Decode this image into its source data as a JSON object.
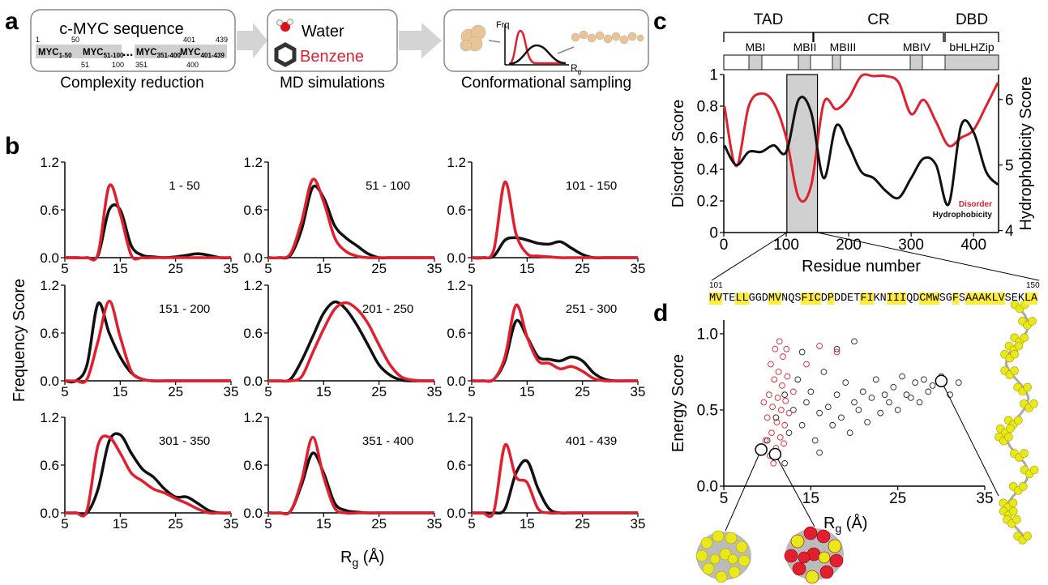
{
  "panel_labels": [
    "a",
    "b",
    "c",
    "d"
  ],
  "schematic": {
    "sequence_title": "c-MYC sequence",
    "segments": [
      {
        "main": "MYC",
        "sub": "1-50"
      },
      {
        "main": "MYC",
        "sub": "51-100"
      },
      {
        "main": "MYC",
        "sub": "351-400"
      },
      {
        "main": "MYC",
        "sub": "401-439"
      }
    ],
    "ellipsis": "...",
    "residue_marks": [
      "1",
      "50",
      "51",
      "100",
      "351",
      "400",
      "401",
      "439"
    ],
    "solvents": [
      "Water",
      "Benzene"
    ],
    "plot_labels": {
      "y": "Frq",
      "x_main": "R",
      "x_sub": "g"
    },
    "captions": [
      "Complexity reduction",
      "MD simulations",
      "Conformational sampling"
    ]
  },
  "shared_labels": {
    "frequency": "Frequency Score",
    "rg_main": "R",
    "rg_sub": "g",
    "rg_unit": " (Å)"
  },
  "chart_data": [
    {
      "type": "line",
      "title": "1 - 50",
      "x": [
        5,
        7,
        9,
        11,
        13,
        15,
        17,
        19,
        21,
        23,
        25,
        27,
        29,
        31,
        33,
        35
      ],
      "xlim": [
        5,
        35
      ],
      "xticks": [
        5,
        15,
        25,
        35
      ],
      "ylim": [
        0,
        1.2
      ],
      "yticks": [
        {
          "value": 0,
          "label": "0.0"
        },
        0.6,
        1.2
      ],
      "series": [
        {
          "color": "#111111",
          "values": [
            0,
            0,
            0,
            0.03,
            0.6,
            0.6,
            0.15,
            0.03,
            0.01,
            0,
            0.01,
            0.03,
            0.05,
            0.03,
            0,
            0
          ]
        },
        {
          "color": "#e0202f",
          "values": [
            0,
            0,
            0,
            0.05,
            0.9,
            0.55,
            0.03,
            0,
            0,
            0,
            0,
            0,
            0,
            0,
            0,
            0
          ]
        }
      ]
    },
    {
      "type": "line",
      "title": "51 - 100",
      "x": [
        5,
        7,
        9,
        11,
        13,
        15,
        17,
        19,
        21,
        23,
        25,
        27,
        29,
        31,
        33,
        35
      ],
      "xlim": [
        5,
        35
      ],
      "xticks": [
        5,
        15,
        25,
        35
      ],
      "ylim": [
        0,
        1.2
      ],
      "yticks": [
        {
          "value": 0,
          "label": "0.0"
        },
        0.6,
        1.2
      ],
      "series": [
        {
          "color": "#111111",
          "values": [
            0,
            0,
            0.03,
            0.35,
            0.88,
            0.75,
            0.4,
            0.25,
            0.15,
            0.05,
            0,
            0,
            0,
            0,
            0,
            0
          ]
        },
        {
          "color": "#e0202f",
          "values": [
            0,
            0,
            0.05,
            0.45,
            0.98,
            0.7,
            0.25,
            0.08,
            0.02,
            0,
            0,
            0,
            0,
            0,
            0,
            0
          ]
        }
      ]
    },
    {
      "type": "line",
      "title": "101 - 150",
      "x": [
        5,
        7,
        9,
        11,
        13,
        15,
        17,
        19,
        21,
        23,
        25,
        27,
        29,
        31,
        33,
        35
      ],
      "xlim": [
        5,
        35
      ],
      "xticks": [
        5,
        15,
        25,
        35
      ],
      "ylim": [
        0,
        1.2
      ],
      "yticks": [
        {
          "value": 0,
          "label": "0.0"
        },
        0.6,
        1.2
      ],
      "series": [
        {
          "color": "#111111",
          "values": [
            0,
            0,
            0.02,
            0.22,
            0.25,
            0.22,
            0.18,
            0.17,
            0.2,
            0.12,
            0.04,
            0,
            0,
            0,
            0,
            0
          ]
        },
        {
          "color": "#e0202f",
          "values": [
            0,
            0,
            0.1,
            0.95,
            0.3,
            0.05,
            0.02,
            0.01,
            0,
            0,
            0,
            0,
            0,
            0,
            0,
            0
          ]
        }
      ]
    },
    {
      "type": "line",
      "title": "151 - 200",
      "x": [
        5,
        7,
        9,
        11,
        13,
        15,
        17,
        19,
        21,
        23,
        25,
        27,
        29,
        31,
        33,
        35
      ],
      "xlim": [
        5,
        35
      ],
      "xticks": [
        5,
        15,
        25,
        35
      ],
      "ylim": [
        0,
        1.2
      ],
      "yticks": [
        {
          "value": 0,
          "label": "0.0"
        },
        0.6,
        1.2
      ],
      "series": [
        {
          "color": "#111111",
          "values": [
            0,
            0,
            0.2,
            0.97,
            0.6,
            0.3,
            0.1,
            0.02,
            0,
            0,
            0,
            0,
            0,
            0,
            0,
            0
          ]
        },
        {
          "color": "#e0202f",
          "values": [
            0,
            0,
            0.02,
            0.5,
            1.0,
            0.55,
            0.12,
            0.02,
            0,
            0,
            0,
            0,
            0,
            0,
            0,
            0
          ]
        }
      ]
    },
    {
      "type": "line",
      "title": "201 - 250",
      "x": [
        5,
        7,
        9,
        11,
        13,
        15,
        17,
        19,
        21,
        23,
        25,
        27,
        29,
        31,
        33,
        35
      ],
      "xlim": [
        5,
        35
      ],
      "xticks": [
        5,
        15,
        25,
        35
      ],
      "ylim": [
        0,
        1.2
      ],
      "yticks": [
        {
          "value": 0,
          "label": "0.0"
        },
        0.6,
        1.2
      ],
      "series": [
        {
          "color": "#111111",
          "values": [
            0,
            0,
            0.02,
            0.25,
            0.55,
            0.85,
            0.99,
            0.9,
            0.7,
            0.45,
            0.2,
            0.07,
            0.01,
            0,
            0,
            0
          ]
        },
        {
          "color": "#e0202f",
          "values": [
            0,
            0,
            0,
            0.05,
            0.35,
            0.65,
            0.9,
            0.98,
            0.9,
            0.72,
            0.45,
            0.2,
            0.05,
            0.01,
            0,
            0
          ]
        }
      ]
    },
    {
      "type": "line",
      "title": "251 - 300",
      "x": [
        5,
        7,
        9,
        11,
        13,
        15,
        17,
        19,
        21,
        23,
        25,
        27,
        29,
        31,
        33,
        35
      ],
      "xlim": [
        5,
        35
      ],
      "xticks": [
        5,
        15,
        25,
        35
      ],
      "ylim": [
        0,
        1.2
      ],
      "yticks": [
        {
          "value": 0,
          "label": "0.0"
        },
        0.6,
        1.2
      ],
      "series": [
        {
          "color": "#111111",
          "values": [
            0,
            0,
            0.02,
            0.25,
            0.75,
            0.55,
            0.3,
            0.27,
            0.25,
            0.3,
            0.25,
            0.1,
            0.02,
            0,
            0,
            0
          ]
        },
        {
          "color": "#e0202f",
          "values": [
            0,
            0,
            0.02,
            0.3,
            0.95,
            0.55,
            0.25,
            0.22,
            0.15,
            0.18,
            0.12,
            0.03,
            0,
            0,
            0,
            0
          ]
        }
      ]
    },
    {
      "type": "line",
      "title": "301 - 350",
      "x": [
        5,
        7,
        9,
        11,
        13,
        15,
        17,
        19,
        21,
        23,
        25,
        27,
        29,
        31,
        33,
        35
      ],
      "xlim": [
        5,
        35
      ],
      "xticks": [
        5,
        15,
        25,
        35
      ],
      "ylim": [
        0,
        1.2
      ],
      "yticks": [
        {
          "value": 0,
          "label": "0.0"
        },
        0.6,
        1.2
      ],
      "series": [
        {
          "color": "#111111",
          "values": [
            0,
            0,
            0,
            0.3,
            0.9,
            0.98,
            0.75,
            0.55,
            0.45,
            0.3,
            0.2,
            0.2,
            0.12,
            0.03,
            0,
            0
          ]
        },
        {
          "color": "#e0202f",
          "values": [
            0,
            0,
            0.03,
            0.85,
            0.95,
            0.75,
            0.5,
            0.4,
            0.3,
            0.25,
            0.18,
            0.12,
            0.05,
            0,
            0,
            0
          ]
        }
      ]
    },
    {
      "type": "line",
      "title": "351 - 400",
      "x": [
        5,
        7,
        9,
        11,
        13,
        15,
        17,
        19,
        21,
        23,
        25,
        27,
        29,
        31,
        33,
        35
      ],
      "xlim": [
        5,
        35
      ],
      "xticks": [
        5,
        15,
        25,
        35
      ],
      "ylim": [
        0,
        1.2
      ],
      "yticks": [
        {
          "value": 0,
          "label": "0.0"
        },
        0.6,
        1.2
      ],
      "series": [
        {
          "color": "#111111",
          "values": [
            0,
            0,
            0.02,
            0.35,
            0.75,
            0.5,
            0.12,
            0.03,
            0.01,
            0,
            0,
            0,
            0,
            0,
            0,
            0
          ]
        },
        {
          "color": "#e0202f",
          "values": [
            0,
            0,
            0.02,
            0.4,
            0.95,
            0.45,
            0.06,
            0,
            0,
            0,
            0,
            0,
            0,
            0,
            0,
            0
          ]
        }
      ]
    },
    {
      "type": "line",
      "title": "401 - 439",
      "x": [
        5,
        7,
        9,
        11,
        13,
        15,
        17,
        19,
        21,
        23,
        25,
        27,
        29,
        31,
        33,
        35
      ],
      "xlim": [
        5,
        35
      ],
      "xticks": [
        5,
        15,
        25,
        35
      ],
      "ylim": [
        0,
        1.2
      ],
      "yticks": [
        {
          "value": 0,
          "label": "0.0"
        },
        0.6,
        1.2
      ],
      "series": [
        {
          "color": "#111111",
          "values": [
            0,
            0,
            0,
            0.05,
            0.5,
            0.65,
            0.3,
            0.05,
            0,
            0,
            0,
            0,
            0,
            0,
            0,
            0
          ]
        },
        {
          "color": "#e0202f",
          "values": [
            0,
            0,
            0.02,
            0.85,
            0.45,
            0.38,
            0.05,
            0,
            0,
            0,
            0,
            0,
            0,
            0,
            0,
            0
          ]
        }
      ]
    },
    {
      "type": "line",
      "x": [
        1,
        20,
        40,
        60,
        80,
        100,
        120,
        140,
        160,
        180,
        200,
        220,
        240,
        260,
        280,
        300,
        320,
        340,
        360,
        380,
        400,
        420,
        439
      ],
      "xlim": [
        0,
        440
      ],
      "xticks": [
        0,
        100,
        200,
        300,
        400
      ],
      "ylim": [
        0,
        1
      ],
      "yticks": [
        0,
        0.2,
        0.4,
        0.6,
        0.8,
        1
      ],
      "y2lim": [
        3.97,
        6.38
      ],
      "y2ticks": [
        4,
        5,
        6
      ],
      "x_label": "Residue number",
      "y_label": "Disorder Score",
      "y2_label": "Hydrophobicity Score",
      "legend": "lower right",
      "highlight_range": [
        101,
        150
      ],
      "domains": [
        "TAD",
        "CR",
        "DBD"
      ],
      "motifs": [
        "MBI",
        "MBII",
        "MBIII",
        "MBIV",
        "bHLHZip"
      ],
      "series": [
        {
          "name": "Disorder",
          "color": "#e0202f",
          "values": [
            0.8,
            0.42,
            0.8,
            0.88,
            0.82,
            0.6,
            0.22,
            0.3,
            0.82,
            0.78,
            0.85,
            0.99,
            0.99,
            0.99,
            0.95,
            0.75,
            0.84,
            0.7,
            0.55,
            0.6,
            0.65,
            0.8,
            0.95
          ]
        },
        {
          "name": "Hydrophobicity",
          "color": "#111111",
          "axis": "y2",
          "values": [
            5.3,
            5.0,
            5.2,
            5.2,
            5.3,
            5.2,
            6.0,
            5.8,
            4.8,
            5.6,
            5.3,
            4.9,
            4.8,
            4.6,
            4.5,
            4.8,
            5.1,
            5.0,
            4.4,
            5.6,
            5.5,
            4.9,
            4.7
          ]
        }
      ]
    },
    {
      "type": "scatter",
      "xlim": [
        5,
        35
      ],
      "xticks": [
        5,
        15,
        25,
        35
      ],
      "ylim": [
        0,
        1.09
      ],
      "yticks": [
        {
          "value": 0,
          "label": "0.0"
        },
        {
          "value": 0.5,
          "label": "0.5"
        },
        {
          "value": 1,
          "label": "1.0"
        }
      ],
      "y_label": "Energy Score",
      "x_label": {
        "main": "R",
        "sub": "g",
        "rest": " (Å)"
      },
      "series": [
        {
          "color": "#222222",
          "x": [
            10,
            11,
            12,
            12.5,
            13,
            13.5,
            14,
            14.5,
            15,
            15.5,
            16,
            16.5,
            17,
            17.5,
            18,
            18.5,
            19,
            19.5,
            20,
            20.5,
            21,
            21.5,
            22,
            22.5,
            23,
            23.5,
            24,
            24.5,
            25,
            25.5,
            26,
            26.5,
            27,
            27.5,
            28,
            28.5,
            29,
            30,
            31,
            32,
            14,
            18,
            20,
            12,
            16
          ],
          "values": [
            0.3,
            0.45,
            0.6,
            0.35,
            0.5,
            0.7,
            0.4,
            0.55,
            0.62,
            0.3,
            0.48,
            0.75,
            0.52,
            0.4,
            0.6,
            0.45,
            0.68,
            0.35,
            0.55,
            0.5,
            0.62,
            0.42,
            0.58,
            0.7,
            0.48,
            0.6,
            0.55,
            0.65,
            0.5,
            0.72,
            0.6,
            0.58,
            0.68,
            0.55,
            0.7,
            0.62,
            0.66,
            0.72,
            0.6,
            0.68,
            0.88,
            0.9,
            0.95,
            0.15,
            0.22
          ]
        },
        {
          "color": "#e0202f",
          "x": [
            9.8,
            10,
            10.2,
            10.4,
            10.5,
            10.6,
            10.8,
            10.9,
            11,
            11.1,
            11.2,
            11.3,
            11.4,
            11.5,
            11.6,
            11.7,
            11.8,
            12,
            12.1,
            12.3,
            12.5,
            10.3,
            11.9,
            13,
            14.5,
            16,
            18,
            9.6,
            10.7,
            12.2
          ],
          "values": [
            0.3,
            0.45,
            0.6,
            0.8,
            0.35,
            0.52,
            0.7,
            0.9,
            0.25,
            0.42,
            0.58,
            0.75,
            0.95,
            0.32,
            0.5,
            0.66,
            0.85,
            0.4,
            0.56,
            0.72,
            0.48,
            0.2,
            0.28,
            0.62,
            0.8,
            0.92,
            0.88,
            0.55,
            0.15,
            0.9
          ]
        }
      ],
      "highlighted": {
        "x": [
          9.3,
          10.9,
          30
        ],
        "values": [
          0.24,
          0.21,
          0.69
        ]
      }
    }
  ],
  "zoom_sequence": {
    "segments": [
      {
        "text": "MV",
        "highlight": true
      },
      {
        "text": "TE",
        "highlight": false
      },
      {
        "text": "LL",
        "highlight": true
      },
      {
        "text": "GGD",
        "highlight": false
      },
      {
        "text": "MV",
        "highlight": true
      },
      {
        "text": "NQS",
        "highlight": false
      },
      {
        "text": "FIC",
        "highlight": true
      },
      {
        "text": "D",
        "highlight": false
      },
      {
        "text": "P",
        "highlight": true
      },
      {
        "text": "DDET",
        "highlight": false
      },
      {
        "text": "FI",
        "highlight": true
      },
      {
        "text": "KN",
        "highlight": false
      },
      {
        "text": "III",
        "highlight": true
      },
      {
        "text": "QD",
        "highlight": false
      },
      {
        "text": "CMW",
        "highlight": true
      },
      {
        "text": "SG",
        "highlight": false
      },
      {
        "text": "F",
        "highlight": true
      },
      {
        "text": "S",
        "highlight": false
      },
      {
        "text": "AAAK",
        "highlight": true
      },
      {
        "text": "LV",
        "highlight": true
      },
      {
        "text": "SEK",
        "highlight": false
      },
      {
        "text": "LA",
        "highlight": true
      }
    ]
  }
}
